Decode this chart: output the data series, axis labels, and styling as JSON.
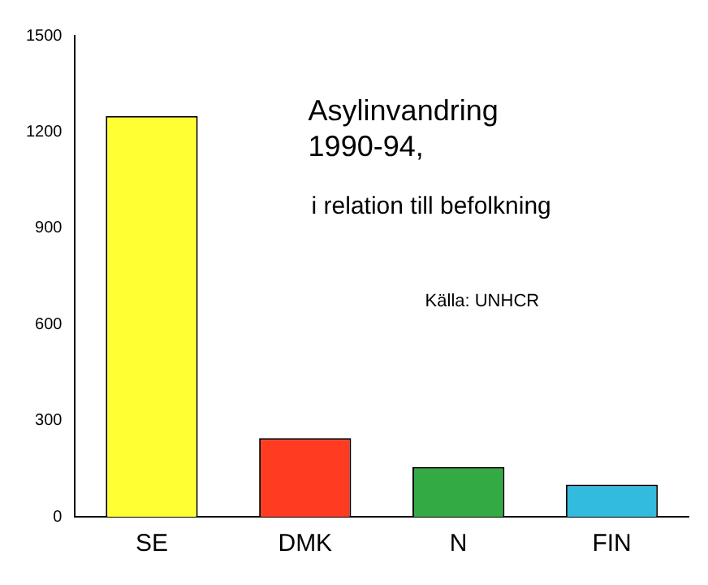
{
  "chart_data": {
    "type": "bar",
    "title": "Asylinvandring 1990-94,",
    "subtitle": "i relation till befolkning",
    "annotations": [
      "Källa: UNHCR"
    ],
    "categories": [
      "SE",
      "DMK",
      "N",
      "FIN"
    ],
    "colors": [
      "#ffff33",
      "#ff3b22",
      "#33aa44",
      "#33bbdd"
    ],
    "values": [
      1250,
      245,
      155,
      100
    ],
    "ylim": [
      0,
      1500
    ],
    "yticks": [
      0,
      300,
      600,
      900,
      1200,
      1500
    ],
    "grid": false,
    "legend": false
  }
}
